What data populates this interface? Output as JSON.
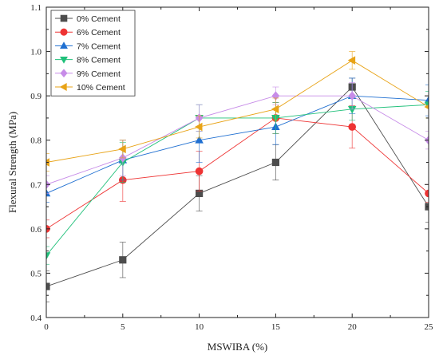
{
  "chart_data": {
    "type": "line",
    "title": "",
    "xlabel": "MSWIBA (%)",
    "ylabel": "Flexural Strength (MPa)",
    "x": [
      0,
      5,
      10,
      15,
      20,
      25
    ],
    "xlim": [
      0,
      25
    ],
    "ylim": [
      0.4,
      1.1
    ],
    "xticks": [
      0,
      5,
      10,
      15,
      20,
      25
    ],
    "yticks": [
      0.4,
      0.5,
      0.6,
      0.7,
      0.8,
      0.9,
      1.0,
      1.1
    ],
    "ytick_labels": [
      "0.4",
      "0.5",
      "0.6",
      "0.7",
      "0.8",
      "0.9",
      "1.0",
      "1.1"
    ],
    "grid": false,
    "legend_position": "top-left",
    "series": [
      {
        "name": "0% Cement",
        "color": "#4d4d4d",
        "marker": "square",
        "values": [
          0.47,
          0.53,
          0.68,
          0.75,
          0.92,
          0.65
        ],
        "errors": [
          0.035,
          0.04,
          0.04,
          0.04,
          0.02,
          0.035
        ]
      },
      {
        "name": "6% Cement",
        "color": "#ee3333",
        "marker": "circle",
        "values": [
          0.6,
          0.71,
          0.73,
          0.85,
          0.83,
          0.68
        ],
        "errors": [
          0.02,
          0.048,
          0.045,
          0.035,
          0.048,
          0.02
        ]
      },
      {
        "name": "7% Cement",
        "color": "#1f6fd1",
        "marker": "triangle-up",
        "values": [
          0.68,
          0.755,
          0.8,
          0.83,
          0.9,
          0.89
        ],
        "errors": [
          0.02,
          0.045,
          0.05,
          0.04,
          0.04,
          0.035
        ]
      },
      {
        "name": "8% Cement",
        "color": "#20c07a",
        "marker": "triangle-down",
        "values": [
          0.54,
          0.75,
          0.85,
          0.85,
          0.87,
          0.88
        ],
        "errors": [
          0.02,
          0.045,
          0.03,
          0.035,
          0.025,
          0.03
        ]
      },
      {
        "name": "9% Cement",
        "color": "#c78ce8",
        "marker": "diamond",
        "values": [
          0.7,
          0.76,
          0.85,
          0.9,
          0.9,
          0.8
        ],
        "errors": [
          0.02,
          0.04,
          0.03,
          0.02,
          0.03,
          0.02
        ]
      },
      {
        "name": "10% Cement",
        "color": "#e8a317",
        "marker": "triangle-left",
        "values": [
          0.75,
          0.78,
          0.83,
          0.87,
          0.98,
          0.875
        ],
        "errors": [
          0.02,
          0.02,
          0.025,
          0.025,
          0.02,
          0.025
        ]
      }
    ]
  }
}
